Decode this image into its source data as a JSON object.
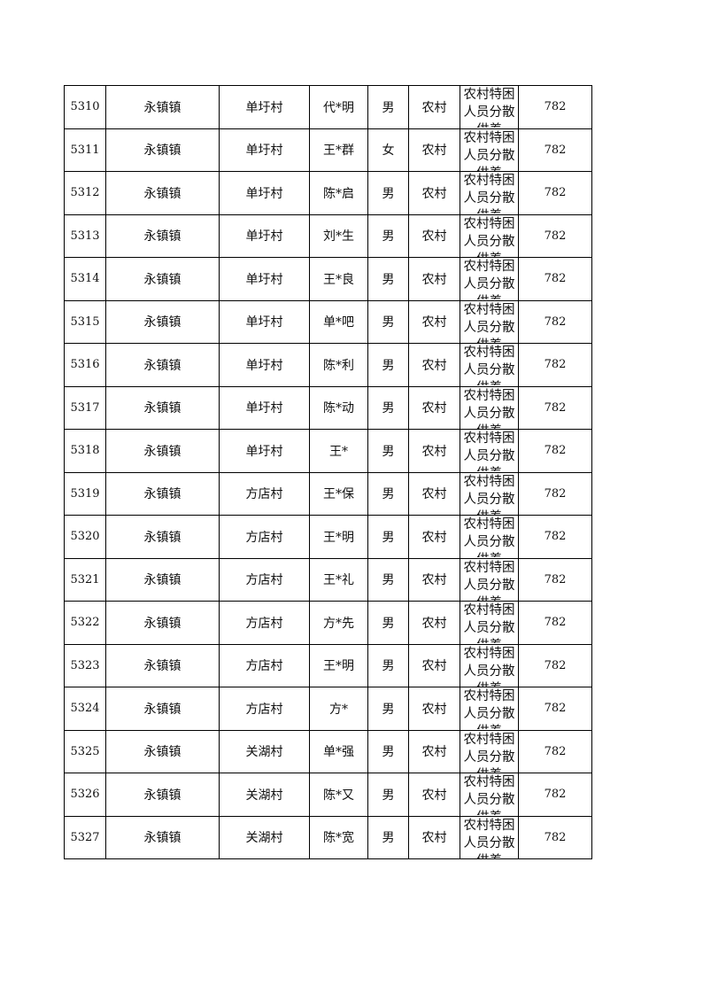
{
  "rows": [
    {
      "id": "5310",
      "town": "永镇镇",
      "village": "单圩村",
      "name": "代*明",
      "gender": "男",
      "household": "农村",
      "category": "农村特困人员分散供养",
      "amount": "782"
    },
    {
      "id": "5311",
      "town": "永镇镇",
      "village": "单圩村",
      "name": "王*群",
      "gender": "女",
      "household": "农村",
      "category": "农村特困人员分散供养",
      "amount": "782"
    },
    {
      "id": "5312",
      "town": "永镇镇",
      "village": "单圩村",
      "name": "陈*启",
      "gender": "男",
      "household": "农村",
      "category": "农村特困人员分散供养",
      "amount": "782"
    },
    {
      "id": "5313",
      "town": "永镇镇",
      "village": "单圩村",
      "name": "刘*生",
      "gender": "男",
      "household": "农村",
      "category": "农村特困人员分散供养",
      "amount": "782"
    },
    {
      "id": "5314",
      "town": "永镇镇",
      "village": "单圩村",
      "name": "王*良",
      "gender": "男",
      "household": "农村",
      "category": "农村特困人员分散供养",
      "amount": "782"
    },
    {
      "id": "5315",
      "town": "永镇镇",
      "village": "单圩村",
      "name": "单*吧",
      "gender": "男",
      "household": "农村",
      "category": "农村特困人员分散供养",
      "amount": "782"
    },
    {
      "id": "5316",
      "town": "永镇镇",
      "village": "单圩村",
      "name": "陈*利",
      "gender": "男",
      "household": "农村",
      "category": "农村特困人员分散供养",
      "amount": "782"
    },
    {
      "id": "5317",
      "town": "永镇镇",
      "village": "单圩村",
      "name": "陈*动",
      "gender": "男",
      "household": "农村",
      "category": "农村特困人员分散供养",
      "amount": "782"
    },
    {
      "id": "5318",
      "town": "永镇镇",
      "village": "单圩村",
      "name": "王*",
      "gender": "男",
      "household": "农村",
      "category": "农村特困人员分散供养",
      "amount": "782"
    },
    {
      "id": "5319",
      "town": "永镇镇",
      "village": "方店村",
      "name": "王*保",
      "gender": "男",
      "household": "农村",
      "category": "农村特困人员分散供养",
      "amount": "782"
    },
    {
      "id": "5320",
      "town": "永镇镇",
      "village": "方店村",
      "name": "王*明",
      "gender": "男",
      "household": "农村",
      "category": "农村特困人员分散供养",
      "amount": "782"
    },
    {
      "id": "5321",
      "town": "永镇镇",
      "village": "方店村",
      "name": "王*礼",
      "gender": "男",
      "household": "农村",
      "category": "农村特困人员分散供养",
      "amount": "782"
    },
    {
      "id": "5322",
      "town": "永镇镇",
      "village": "方店村",
      "name": "方*先",
      "gender": "男",
      "household": "农村",
      "category": "农村特困人员分散供养",
      "amount": "782"
    },
    {
      "id": "5323",
      "town": "永镇镇",
      "village": "方店村",
      "name": "王*明",
      "gender": "男",
      "household": "农村",
      "category": "农村特困人员分散供养",
      "amount": "782"
    },
    {
      "id": "5324",
      "town": "永镇镇",
      "village": "方店村",
      "name": "方*",
      "gender": "男",
      "household": "农村",
      "category": "农村特困人员分散供养",
      "amount": "782"
    },
    {
      "id": "5325",
      "town": "永镇镇",
      "village": "关湖村",
      "name": "单*强",
      "gender": "男",
      "household": "农村",
      "category": "农村特困人员分散供养",
      "amount": "782"
    },
    {
      "id": "5326",
      "town": "永镇镇",
      "village": "关湖村",
      "name": "陈*又",
      "gender": "男",
      "household": "农村",
      "category": "农村特困人员分散供养",
      "amount": "782"
    },
    {
      "id": "5327",
      "town": "永镇镇",
      "village": "关湖村",
      "name": "陈*宽",
      "gender": "男",
      "household": "农村",
      "category": "农村特困人员分散供养",
      "amount": "782"
    }
  ]
}
